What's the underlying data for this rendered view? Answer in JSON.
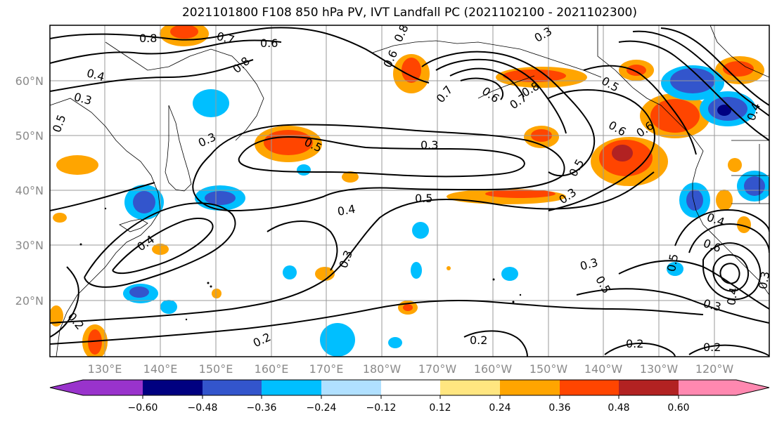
{
  "title": "2021101800 F108 850 hPa PV, IVT Landfall PC (2021102100 - 2021102300)",
  "latitude_labels": [
    "60°N",
    "50°N",
    "40°N",
    "30°N",
    "20°N"
  ],
  "longitude_labels": [
    "130°E",
    "140°E",
    "150°E",
    "160°E",
    "170°E",
    "180°W",
    "170°W",
    "160°W",
    "150°W",
    "140°W",
    "130°W",
    "120°W"
  ],
  "colorbar": {
    "colors": [
      "#9933cc",
      "#000080",
      "#3355cc",
      "#00bfff",
      "#b0e0ff",
      "#ffffff",
      "#ffe680",
      "#ffa500",
      "#ff4500",
      "#b22222",
      "#ff88b0"
    ],
    "tick_labels": [
      "−0.60",
      "−0.48",
      "−0.36",
      "−0.24",
      "−0.12",
      "0.12",
      "0.24",
      "0.36",
      "0.48",
      "0.60"
    ]
  },
  "contour_labels": [
    "0.8",
    "0.7",
    "0.6",
    "0.8",
    "0.6",
    "0.8",
    "0.3",
    "0.4",
    "0.3",
    "0.5",
    "0.3",
    "0.5",
    "0.3",
    "0.7",
    "0.6",
    "0.7",
    "0.8",
    "0.5",
    "0.4",
    "0.3",
    "0.5",
    "0.4",
    "0.4",
    "0.3",
    "0.3",
    "0.2",
    "0.2",
    "0.3",
    "0.5",
    "0.5",
    "0.6",
    "0.4",
    "0.3",
    "0.2",
    "0.2",
    "0.2",
    "0.6",
    "0.4",
    "0.6",
    "0.5"
  ]
}
